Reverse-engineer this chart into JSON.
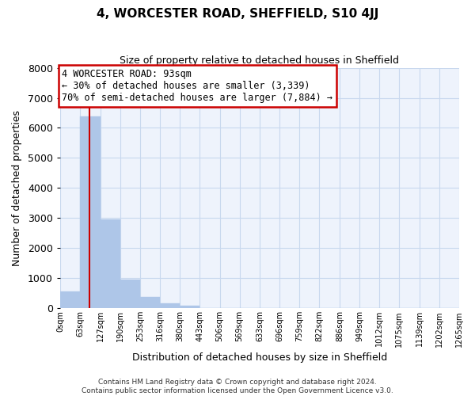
{
  "title": "4, WORCESTER ROAD, SHEFFIELD, S10 4JJ",
  "subtitle": "Size of property relative to detached houses in Sheffield",
  "xlabel": "Distribution of detached houses by size in Sheffield",
  "ylabel": "Number of detached properties",
  "bin_edges": [
    0,
    63,
    127,
    190,
    253,
    316,
    380,
    443,
    506,
    569,
    633,
    696,
    759,
    822,
    886,
    949,
    1012,
    1075,
    1139,
    1202,
    1265
  ],
  "bar_heights": [
    560,
    6380,
    2960,
    960,
    370,
    170,
    90,
    0,
    0,
    0,
    0,
    0,
    0,
    0,
    0,
    0,
    0,
    0,
    0,
    0
  ],
  "bar_color": "#aec6e8",
  "bar_edgecolor": "#aec6e8",
  "grid_color": "#c8d8ee",
  "background_color": "#eef3fc",
  "property_value": 93,
  "property_line_color": "#cc0000",
  "tick_labels": [
    "0sqm",
    "63sqm",
    "127sqm",
    "190sqm",
    "253sqm",
    "316sqm",
    "380sqm",
    "443sqm",
    "506sqm",
    "569sqm",
    "633sqm",
    "696sqm",
    "759sqm",
    "822sqm",
    "886sqm",
    "949sqm",
    "1012sqm",
    "1075sqm",
    "1139sqm",
    "1202sqm",
    "1265sqm"
  ],
  "ylim": [
    0,
    8000
  ],
  "yticks": [
    0,
    1000,
    2000,
    3000,
    4000,
    5000,
    6000,
    7000,
    8000
  ],
  "annotation_title": "4 WORCESTER ROAD: 93sqm",
  "annotation_line1": "← 30% of detached houses are smaller (3,339)",
  "annotation_line2": "70% of semi-detached houses are larger (7,884) →",
  "annotation_box_color": "#ffffff",
  "annotation_box_edgecolor": "#cc0000",
  "footer_line1": "Contains HM Land Registry data © Crown copyright and database right 2024.",
  "footer_line2": "Contains public sector information licensed under the Open Government Licence v3.0."
}
